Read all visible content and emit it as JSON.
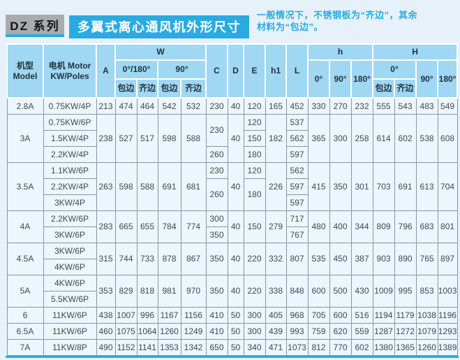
{
  "title": {
    "series": "DZ 系列",
    "main": "多翼式离心通风机外形尺寸",
    "note_line1": "一般情况下，不锈钢板为“齐边”，其余",
    "note_line2": "材料为“包边”。"
  },
  "colors": {
    "accent_blue": "#29abe2",
    "badge_gray": "#a9abae",
    "header_fill": "#a0d7f2",
    "cell_fill": "#edf6fc",
    "grid_line": "#8a959c",
    "page_bg": "#e7f1f9"
  },
  "table": {
    "header_rows": [
      [
        {
          "t": "机型\nModel",
          "rs": 3
        },
        {
          "t": "电机 Motor\nKW/Poles",
          "rs": 3
        },
        {
          "t": "A",
          "rs": 3
        },
        {
          "t": "W",
          "cs": 4
        },
        {
          "t": "C",
          "rs": 3
        },
        {
          "t": "D",
          "rs": 3
        },
        {
          "t": "E",
          "rs": 3
        },
        {
          "t": "h1",
          "rs": 3
        },
        {
          "t": "L",
          "rs": 3
        },
        {
          "t": "h",
          "cs": 3
        },
        {
          "t": "H",
          "cs": 4
        }
      ],
      [
        {
          "t": "0°/180°",
          "cs": 2
        },
        {
          "t": "90°",
          "cs": 2
        },
        {
          "t": "0°",
          "rs": 2
        },
        {
          "t": "90°",
          "rs": 2
        },
        {
          "t": "180°",
          "rs": 2
        },
        {
          "t": "0°",
          "cs": 2
        },
        {
          "t": "90°",
          "rs": 2
        },
        {
          "t": "180°",
          "rs": 2
        }
      ],
      [
        {
          "t": "包边"
        },
        {
          "t": "齐边"
        },
        {
          "t": "包边"
        },
        {
          "t": "齐边"
        },
        {
          "t": "包边"
        },
        {
          "t": "齐边"
        }
      ]
    ],
    "body_rows": [
      [
        "2.8A",
        "0.75KW/4P",
        "213",
        "474",
        "464",
        "542",
        "532",
        "230",
        "40",
        "120",
        "165",
        "452",
        "330",
        "270",
        "232",
        "555",
        "543",
        "483",
        "549"
      ],
      [
        {
          "t": "3A",
          "rs": 3
        },
        "0.75KW/6P",
        {
          "t": "238",
          "rs": 3
        },
        {
          "t": "527",
          "rs": 3
        },
        {
          "t": "517",
          "rs": 3
        },
        {
          "t": "598",
          "rs": 3
        },
        {
          "t": "588",
          "rs": 3
        },
        {
          "t": "230",
          "rs": 2
        },
        {
          "t": "40",
          "rs": 3
        },
        "120",
        {
          "t": "182",
          "rs": 3
        },
        "537",
        {
          "t": "365",
          "rs": 3
        },
        {
          "t": "300",
          "rs": 3
        },
        {
          "t": "258",
          "rs": 3
        },
        {
          "t": "614",
          "rs": 3
        },
        {
          "t": "602",
          "rs": 3
        },
        {
          "t": "538",
          "rs": 3
        },
        {
          "t": "608",
          "rs": 3
        }
      ],
      [
        "1.5KW/4P",
        "150",
        "562"
      ],
      [
        "2.2KW/4P",
        "260",
        "180",
        "597"
      ],
      [
        {
          "t": "3.5A",
          "rs": 3
        },
        "1.1KW/6P",
        {
          "t": "263",
          "rs": 3
        },
        {
          "t": "598",
          "rs": 3
        },
        {
          "t": "588",
          "rs": 3
        },
        {
          "t": "691",
          "rs": 3
        },
        {
          "t": "681",
          "rs": 3
        },
        "230",
        {
          "t": "40",
          "rs": 3
        },
        "120",
        {
          "t": "226",
          "rs": 3
        },
        "562",
        {
          "t": "415",
          "rs": 3
        },
        {
          "t": "350",
          "rs": 3
        },
        {
          "t": "301",
          "rs": 3
        },
        {
          "t": "703",
          "rs": 3
        },
        {
          "t": "691",
          "rs": 3
        },
        {
          "t": "613",
          "rs": 3
        },
        {
          "t": "704",
          "rs": 3
        }
      ],
      [
        "2.2KW/4P",
        {
          "t": "260",
          "rs": 2
        },
        {
          "t": "180",
          "rs": 2
        },
        "597"
      ],
      [
        "3KW/4P",
        "597"
      ],
      [
        {
          "t": "4A",
          "rs": 2
        },
        "2.2KW/6P",
        {
          "t": "283",
          "rs": 2
        },
        {
          "t": "665",
          "rs": 2
        },
        {
          "t": "655",
          "rs": 2
        },
        {
          "t": "784",
          "rs": 2
        },
        {
          "t": "774",
          "rs": 2
        },
        "300",
        {
          "t": "40",
          "rs": 2
        },
        {
          "t": "150",
          "rs": 2
        },
        {
          "t": "279",
          "rs": 2
        },
        "717",
        {
          "t": "480",
          "rs": 2
        },
        {
          "t": "400",
          "rs": 2
        },
        {
          "t": "344",
          "rs": 2
        },
        {
          "t": "809",
          "rs": 2
        },
        {
          "t": "796",
          "rs": 2
        },
        {
          "t": "683",
          "rs": 2
        },
        {
          "t": "801",
          "rs": 2
        }
      ],
      [
        "3KW/6P",
        "350",
        "767"
      ],
      [
        {
          "t": "4.5A",
          "rs": 2
        },
        "3KW/6P",
        {
          "t": "315",
          "rs": 2
        },
        {
          "t": "744",
          "rs": 2
        },
        {
          "t": "733",
          "rs": 2
        },
        {
          "t": "878",
          "rs": 2
        },
        {
          "t": "867",
          "rs": 2
        },
        {
          "t": "350",
          "rs": 2
        },
        {
          "t": "40",
          "rs": 2
        },
        {
          "t": "220",
          "rs": 2
        },
        {
          "t": "332",
          "rs": 2
        },
        {
          "t": "807",
          "rs": 2
        },
        {
          "t": "535",
          "rs": 2
        },
        {
          "t": "450",
          "rs": 2
        },
        {
          "t": "387",
          "rs": 2
        },
        {
          "t": "903",
          "rs": 2
        },
        {
          "t": "890",
          "rs": 2
        },
        {
          "t": "765",
          "rs": 2
        },
        {
          "t": "897",
          "rs": 2
        }
      ],
      [
        "4KW/6P"
      ],
      [
        {
          "t": "5A",
          "rs": 2
        },
        "4KW/6P",
        {
          "t": "353",
          "rs": 2
        },
        {
          "t": "829",
          "rs": 2
        },
        {
          "t": "818",
          "rs": 2
        },
        {
          "t": "981",
          "rs": 2
        },
        {
          "t": "970",
          "rs": 2
        },
        {
          "t": "350",
          "rs": 2
        },
        {
          "t": "40",
          "rs": 2
        },
        {
          "t": "220",
          "rs": 2
        },
        {
          "t": "338",
          "rs": 2
        },
        {
          "t": "848",
          "rs": 2
        },
        {
          "t": "600",
          "rs": 2
        },
        {
          "t": "500",
          "rs": 2
        },
        {
          "t": "430",
          "rs": 2
        },
        {
          "t": "1009",
          "rs": 2
        },
        {
          "t": "995",
          "rs": 2
        },
        {
          "t": "853",
          "rs": 2
        },
        {
          "t": "1003",
          "rs": 2
        }
      ],
      [
        "5.5KW/6P"
      ],
      [
        "6",
        "11KW/6P",
        "438",
        "1007",
        "996",
        "1167",
        "1156",
        "410",
        "50",
        "300",
        "405",
        "968",
        "705",
        "600",
        "516",
        "1194",
        "1179",
        "1038",
        "1196"
      ],
      [
        "6.5A",
        "11KW/6P",
        "460",
        "1075",
        "1064",
        "1260",
        "1249",
        "410",
        "50",
        "300",
        "439",
        "993",
        "759",
        "620",
        "559",
        "1287",
        "1272",
        "1079",
        "1293"
      ],
      [
        "7A",
        "11KW/8P",
        "490",
        "1152",
        "1141",
        "1353",
        "1342",
        "650",
        "50",
        "340",
        "471",
        "1073",
        "812",
        "770",
        "602",
        "1380",
        "1365",
        "1260",
        "1389"
      ]
    ]
  }
}
